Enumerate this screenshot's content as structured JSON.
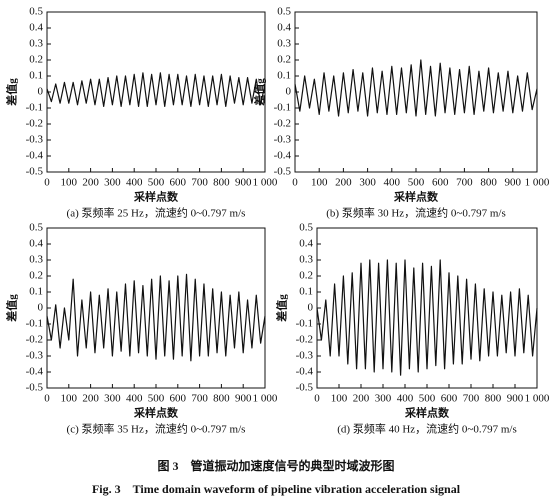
{
  "chart_data": [
    {
      "type": "line",
      "caption": "(a) 泵频率 25 Hz，流速约 0~0.797 m/s",
      "xlabel": "采样点数",
      "ylabel": "差值g",
      "color": "#111111",
      "xlim": [
        0,
        1000
      ],
      "ylim": [
        -0.5,
        0.5
      ],
      "xticks": [
        0,
        100,
        200,
        300,
        400,
        500,
        600,
        700,
        800,
        900,
        {
          "value": 1000,
          "label": "1 000"
        }
      ],
      "yticks": [
        0.5,
        0.4,
        0.3,
        0.2,
        0.1,
        0,
        -0.1,
        -0.2,
        -0.3,
        -0.4,
        -0.5
      ],
      "x": [
        0,
        20,
        40,
        60,
        80,
        100,
        120,
        140,
        160,
        180,
        200,
        220,
        240,
        260,
        280,
        300,
        320,
        340,
        360,
        380,
        400,
        420,
        440,
        460,
        480,
        500,
        520,
        540,
        560,
        580,
        600,
        620,
        640,
        660,
        680,
        700,
        720,
        740,
        760,
        780,
        800,
        820,
        840,
        860,
        880,
        900,
        920,
        940,
        960,
        980,
        1000
      ],
      "values": [
        0.02,
        -0.06,
        0.05,
        -0.07,
        0.06,
        -0.07,
        0.06,
        -0.08,
        0.07,
        -0.07,
        0.08,
        -0.08,
        0.08,
        -0.09,
        0.09,
        -0.08,
        0.1,
        -0.09,
        0.1,
        -0.08,
        0.11,
        -0.09,
        0.12,
        -0.09,
        0.11,
        -0.08,
        0.12,
        -0.09,
        0.11,
        -0.08,
        0.11,
        -0.08,
        0.1,
        -0.09,
        0.11,
        -0.08,
        0.1,
        -0.09,
        0.1,
        -0.08,
        0.11,
        -0.09,
        0.1,
        -0.07,
        0.09,
        -0.08,
        0.09,
        -0.07,
        0.08,
        -0.08,
        0.05
      ]
    },
    {
      "type": "line",
      "caption": "(b) 泵频率 30 Hz，流速约 0~0.797 m/s",
      "xlabel": "采样点数",
      "ylabel": "差值g",
      "color": "#111111",
      "xlim": [
        0,
        1000
      ],
      "ylim": [
        -0.5,
        0.5
      ],
      "xticks": [
        0,
        100,
        200,
        300,
        400,
        500,
        600,
        700,
        800,
        900,
        {
          "value": 1000,
          "label": "1 000"
        }
      ],
      "yticks": [
        0.5,
        0.4,
        0.3,
        0.2,
        0.1,
        0,
        -0.1,
        -0.2,
        -0.3,
        -0.4,
        -0.5
      ],
      "x": [
        0,
        20,
        40,
        60,
        80,
        100,
        120,
        140,
        160,
        180,
        200,
        220,
        240,
        260,
        280,
        300,
        320,
        340,
        360,
        380,
        400,
        420,
        440,
        460,
        480,
        500,
        520,
        540,
        560,
        580,
        600,
        620,
        640,
        660,
        680,
        700,
        720,
        740,
        760,
        780,
        800,
        820,
        840,
        860,
        880,
        900,
        920,
        940,
        960,
        980,
        1000
      ],
      "values": [
        0.05,
        -0.12,
        0.1,
        -0.1,
        0.08,
        -0.14,
        0.12,
        -0.12,
        0.1,
        -0.15,
        0.12,
        -0.13,
        0.14,
        -0.12,
        0.12,
        -0.15,
        0.15,
        -0.13,
        0.13,
        -0.14,
        0.16,
        -0.14,
        0.15,
        -0.13,
        0.17,
        -0.15,
        0.2,
        -0.14,
        0.16,
        -0.15,
        0.18,
        -0.13,
        0.15,
        -0.14,
        0.14,
        -0.13,
        0.16,
        -0.14,
        0.13,
        -0.12,
        0.15,
        -0.13,
        0.12,
        -0.12,
        0.13,
        -0.13,
        0.1,
        -0.12,
        0.12,
        -0.11,
        0.02
      ]
    },
    {
      "type": "line",
      "caption": "(c) 泵频率 35 Hz，流速约 0~0.797 m/s",
      "xlabel": "采样点数",
      "ylabel": "差值g",
      "color": "#111111",
      "xlim": [
        0,
        1000
      ],
      "ylim": [
        -0.5,
        0.5
      ],
      "xticks": [
        0,
        100,
        200,
        300,
        400,
        500,
        600,
        700,
        800,
        900,
        {
          "value": 1000,
          "label": "1 000"
        }
      ],
      "yticks": [
        0.5,
        0.4,
        0.3,
        0.2,
        0.1,
        0,
        -0.1,
        -0.2,
        -0.3,
        -0.4,
        -0.5
      ],
      "x": [
        0,
        20,
        40,
        60,
        80,
        100,
        120,
        140,
        160,
        180,
        200,
        220,
        240,
        260,
        280,
        300,
        320,
        340,
        360,
        380,
        400,
        420,
        440,
        460,
        480,
        500,
        520,
        540,
        560,
        580,
        600,
        620,
        640,
        660,
        680,
        700,
        720,
        740,
        760,
        780,
        800,
        820,
        840,
        860,
        880,
        900,
        920,
        940,
        960,
        980,
        1000
      ],
      "values": [
        -0.05,
        -0.2,
        0.02,
        -0.25,
        0.0,
        -0.2,
        0.18,
        -0.3,
        0.05,
        -0.25,
        0.1,
        -0.28,
        0.08,
        -0.25,
        0.12,
        -0.3,
        0.1,
        -0.27,
        0.15,
        -0.3,
        0.17,
        -0.28,
        0.14,
        -0.3,
        0.18,
        -0.32,
        0.2,
        -0.3,
        0.17,
        -0.32,
        0.2,
        -0.3,
        0.21,
        -0.33,
        0.18,
        -0.3,
        0.15,
        -0.3,
        0.12,
        -0.28,
        0.1,
        -0.3,
        0.08,
        -0.25,
        0.1,
        -0.28,
        0.05,
        -0.25,
        0.08,
        -0.22,
        -0.05
      ]
    },
    {
      "type": "line",
      "caption": "(d) 泵频率 40 Hz，流速约 0~0.797 m/s",
      "xlabel": "采样点数",
      "ylabel": "差值g",
      "color": "#111111",
      "xlim": [
        0,
        1000
      ],
      "ylim": [
        -0.5,
        0.5
      ],
      "xticks": [
        0,
        100,
        200,
        300,
        400,
        500,
        600,
        700,
        800,
        900,
        {
          "value": 1000,
          "label": "1 000"
        }
      ],
      "yticks": [
        0.5,
        0.4,
        0.3,
        0.2,
        0.1,
        0,
        -0.1,
        -0.2,
        -0.3,
        -0.4,
        -0.5
      ],
      "x": [
        0,
        20,
        40,
        60,
        80,
        100,
        120,
        140,
        160,
        180,
        200,
        220,
        240,
        260,
        280,
        300,
        320,
        340,
        360,
        380,
        400,
        420,
        440,
        460,
        480,
        500,
        520,
        540,
        560,
        580,
        600,
        620,
        640,
        660,
        680,
        700,
        720,
        740,
        760,
        780,
        800,
        820,
        840,
        860,
        880,
        900,
        920,
        940,
        960,
        980,
        1000
      ],
      "values": [
        0.0,
        -0.2,
        0.05,
        -0.3,
        0.15,
        -0.3,
        0.2,
        -0.35,
        0.22,
        -0.38,
        0.28,
        -0.38,
        0.3,
        -0.4,
        0.28,
        -0.38,
        0.3,
        -0.4,
        0.28,
        -0.42,
        0.3,
        -0.38,
        0.25,
        -0.4,
        0.28,
        -0.38,
        0.26,
        -0.36,
        0.3,
        -0.38,
        0.22,
        -0.35,
        0.2,
        -0.35,
        0.18,
        -0.32,
        0.15,
        -0.33,
        0.12,
        -0.3,
        0.1,
        -0.3,
        0.08,
        -0.28,
        0.1,
        -0.3,
        0.12,
        -0.28,
        0.08,
        -0.3,
        0.0
      ]
    }
  ],
  "figure_caption": {
    "zh": "图 3　管道振动加速度信号的典型时域波形图",
    "en": "Fig. 3　Time domain waveform of pipeline vibration acceleration signal"
  }
}
